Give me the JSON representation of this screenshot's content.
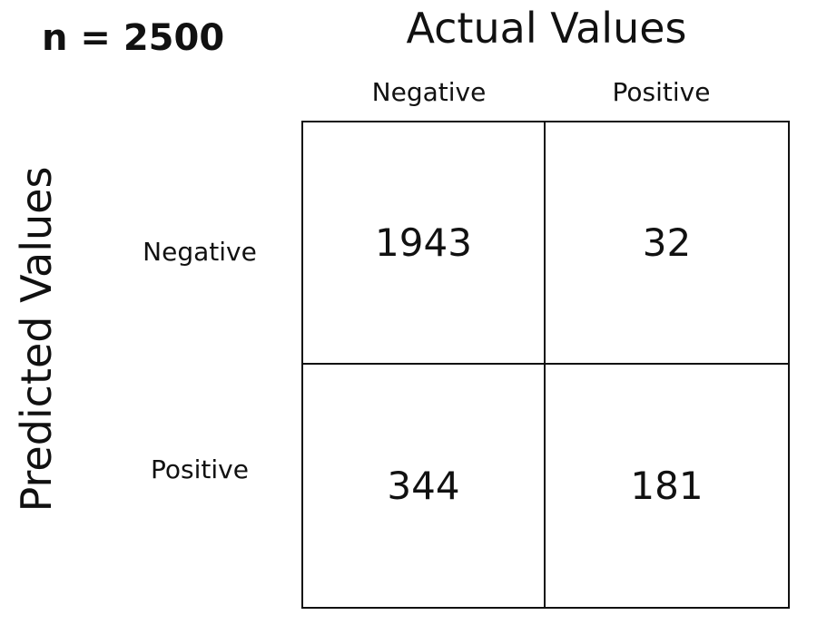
{
  "sample_size_label": "n = 2500",
  "actual_axis_title": "Actual Values",
  "predicted_axis_title": "Predicted Values",
  "columns": [
    "Negative",
    "Positive"
  ],
  "rows": [
    "Negative",
    "Positive"
  ],
  "matrix": [
    [
      "1943",
      "32"
    ],
    [
      "344",
      "181"
    ]
  ],
  "colors": {
    "text": "#111111",
    "grid_line": "#111111",
    "background": "#ffffff"
  }
}
